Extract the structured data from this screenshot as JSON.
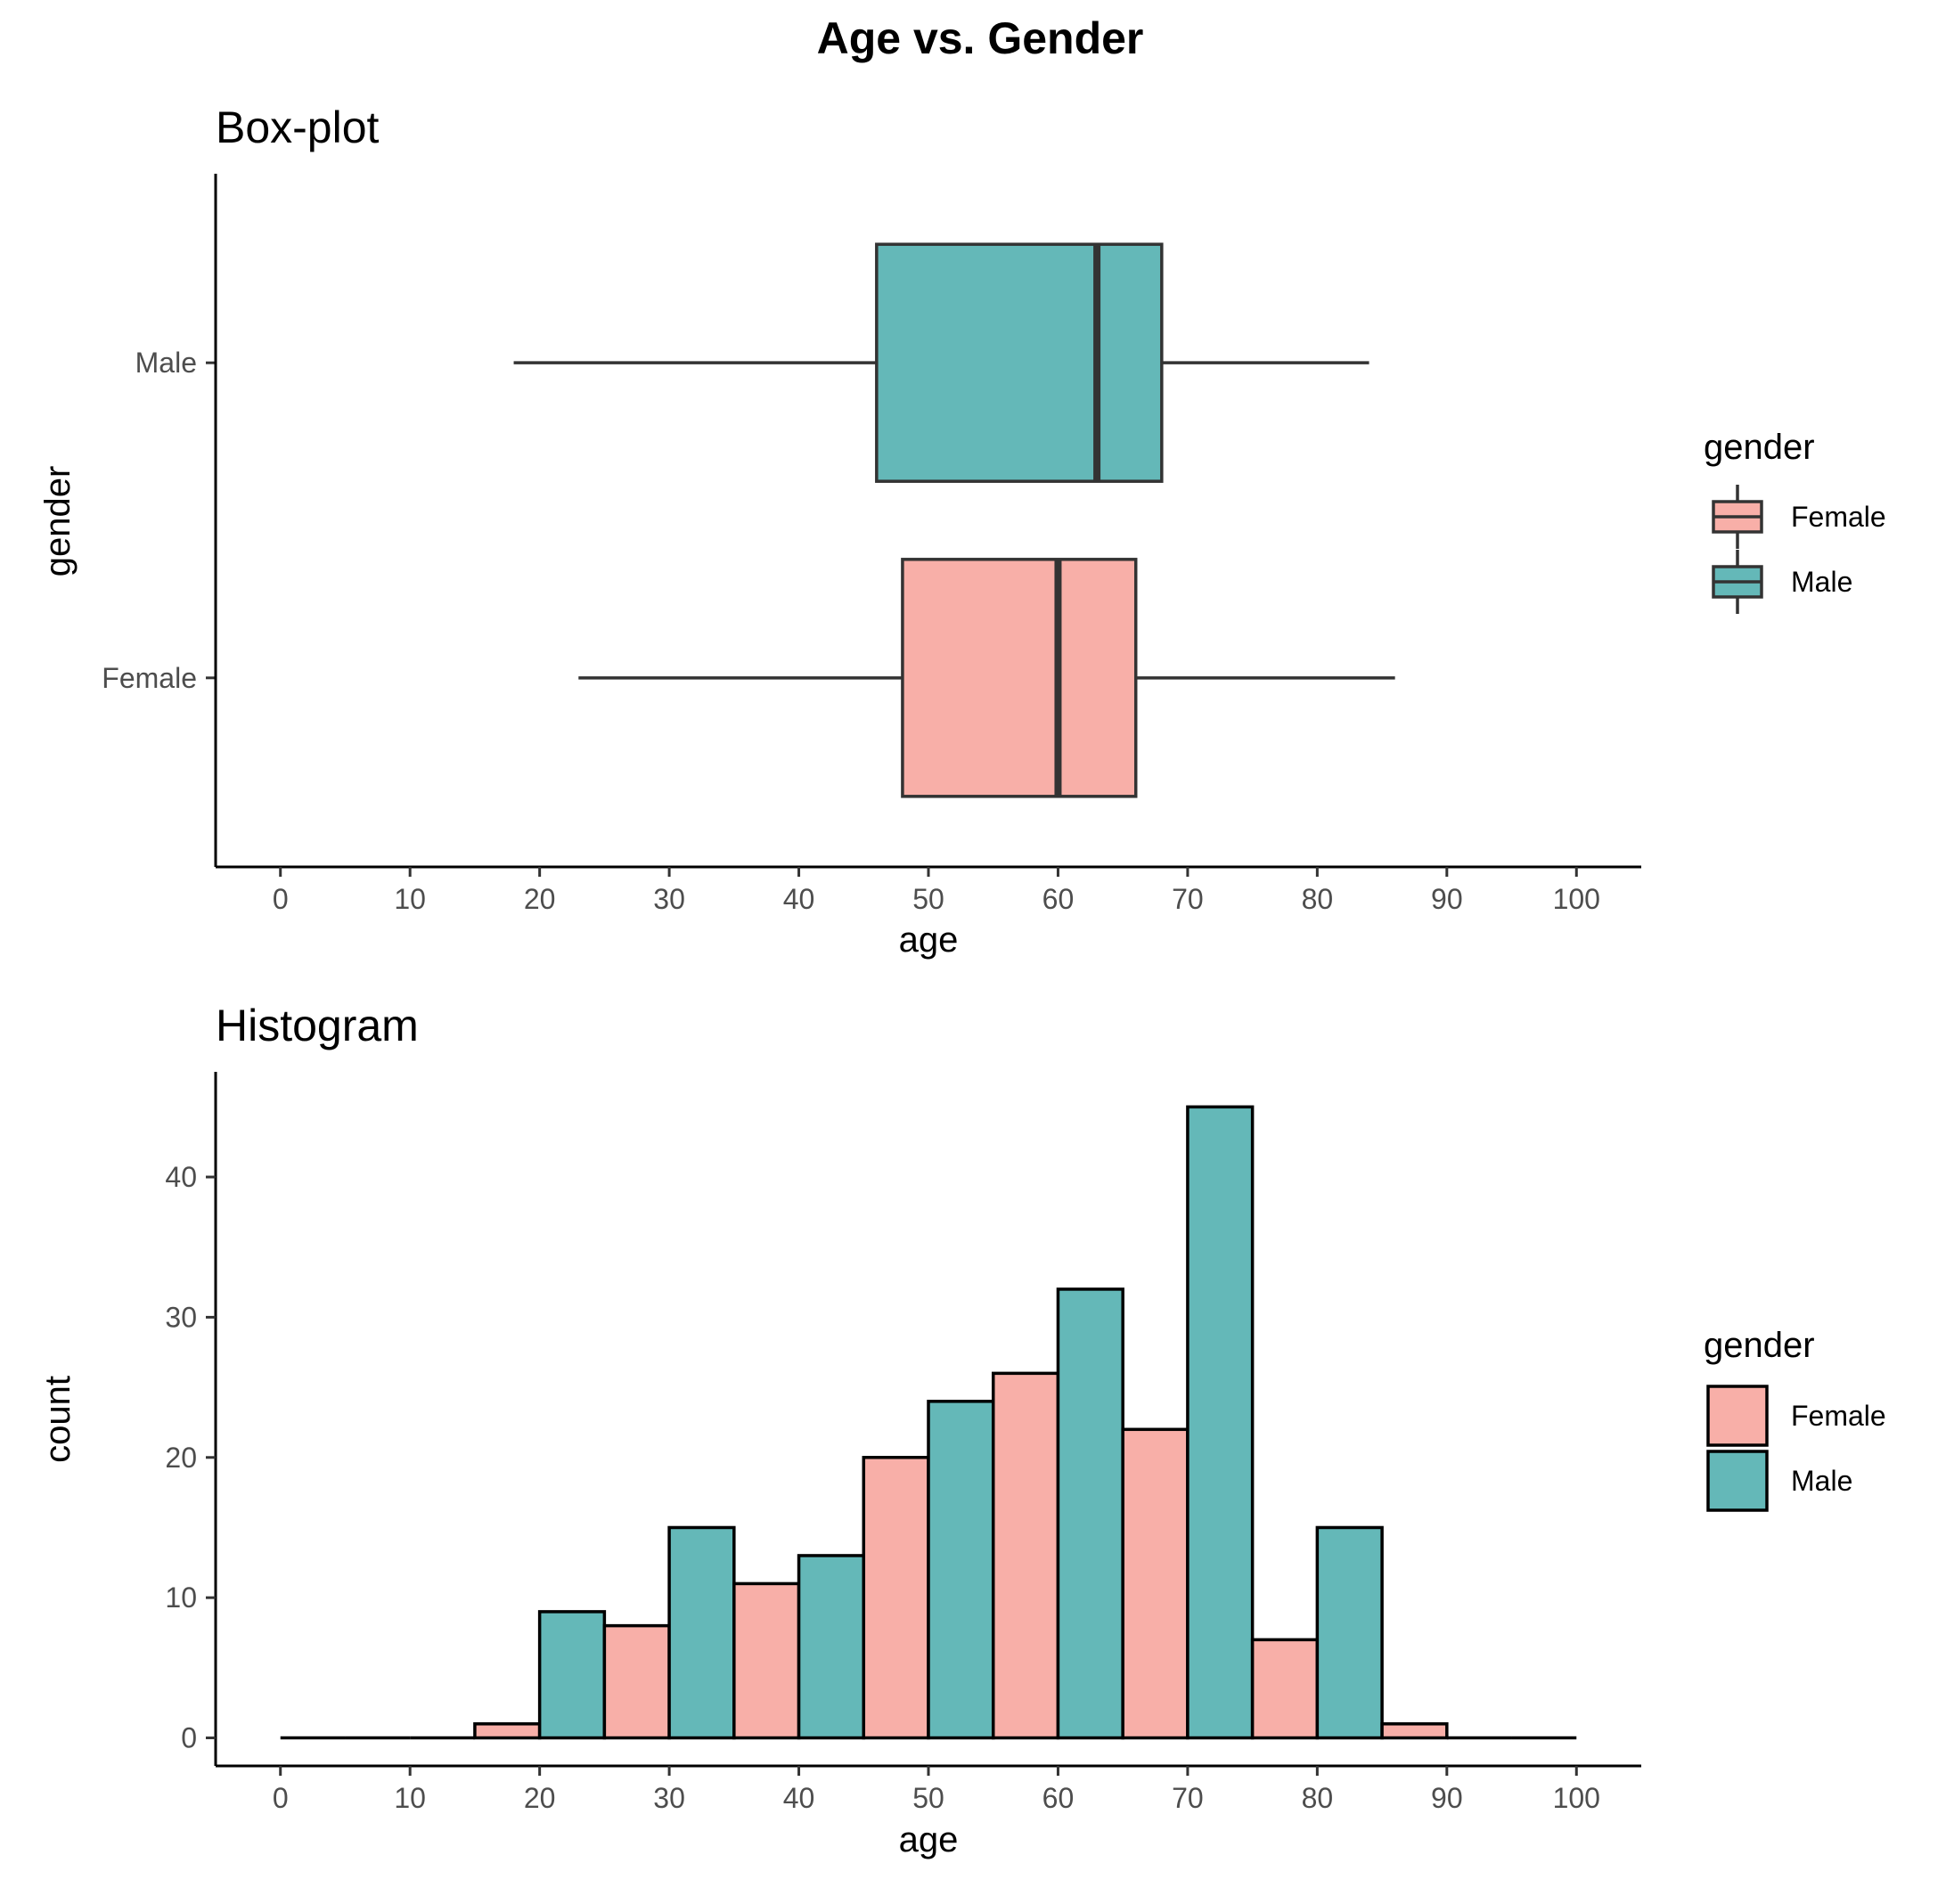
{
  "title": "Age vs. Gender",
  "colors": {
    "Female": "#F8AFA8",
    "Male": "#64B8B8",
    "outline_box": "#333333",
    "outline_hist": "#000000"
  },
  "chart_data": [
    {
      "type": "box",
      "title": "Box-plot",
      "xlabel": "age",
      "ylabel": "gender",
      "xlim": [
        -5,
        105
      ],
      "xticks": [
        "0",
        "10",
        "20",
        "30",
        "40",
        "50",
        "60",
        "70",
        "80",
        "90",
        "100"
      ],
      "categories": [
        "Female",
        "Male"
      ],
      "boxes": [
        {
          "name": "Female",
          "whisker_low": 23,
          "q1": 48,
          "median": 60,
          "q3": 66,
          "whisker_high": 86
        },
        {
          "name": "Male",
          "whisker_low": 18,
          "q1": 46,
          "median": 63,
          "q3": 68,
          "whisker_high": 84
        }
      ],
      "legend": {
        "title": "gender",
        "entries": [
          "Female",
          "Male"
        ],
        "position": "right"
      },
      "grid": false
    },
    {
      "type": "bar",
      "title": "Histogram",
      "xlabel": "age",
      "ylabel": "count",
      "xlim": [
        -5,
        105
      ],
      "ylim": [
        -2,
        47.5
      ],
      "xticks": [
        "0",
        "10",
        "20",
        "30",
        "40",
        "50",
        "60",
        "70",
        "80",
        "90",
        "100"
      ],
      "yticks": [
        "0",
        "10",
        "20",
        "30",
        "40"
      ],
      "bins": [
        {
          "x0": 0,
          "x1": 5,
          "group": "Female",
          "count": 0
        },
        {
          "x0": 5,
          "x1": 10,
          "group": "Male",
          "count": 0
        },
        {
          "x0": 10,
          "x1": 15,
          "group": "Female",
          "count": 0
        },
        {
          "x0": 15,
          "x1": 20,
          "group": "Female",
          "count": 1
        },
        {
          "x0": 20,
          "x1": 25,
          "group": "Male",
          "count": 9
        },
        {
          "x0": 25,
          "x1": 30,
          "group": "Female",
          "count": 8
        },
        {
          "x0": 30,
          "x1": 35,
          "group": "Male",
          "count": 15
        },
        {
          "x0": 35,
          "x1": 40,
          "group": "Female",
          "count": 11
        },
        {
          "x0": 40,
          "x1": 45,
          "group": "Male",
          "count": 13
        },
        {
          "x0": 45,
          "x1": 50,
          "group": "Female",
          "count": 20
        },
        {
          "x0": 50,
          "x1": 55,
          "group": "Male",
          "count": 24
        },
        {
          "x0": 55,
          "x1": 60,
          "group": "Female",
          "count": 26
        },
        {
          "x0": 60,
          "x1": 65,
          "group": "Male",
          "count": 32
        },
        {
          "x0": 65,
          "x1": 70,
          "group": "Female",
          "count": 22
        },
        {
          "x0": 70,
          "x1": 75,
          "group": "Male",
          "count": 45
        },
        {
          "x0": 75,
          "x1": 80,
          "group": "Female",
          "count": 7
        },
        {
          "x0": 80,
          "x1": 85,
          "group": "Male",
          "count": 15
        },
        {
          "x0": 85,
          "x1": 90,
          "group": "Female",
          "count": 1
        },
        {
          "x0": 90,
          "x1": 95,
          "group": "Male",
          "count": 0
        },
        {
          "x0": 95,
          "x1": 100,
          "group": "Female",
          "count": 0
        }
      ],
      "legend": {
        "title": "gender",
        "entries": [
          "Female",
          "Male"
        ],
        "position": "right"
      },
      "grid": false
    }
  ]
}
